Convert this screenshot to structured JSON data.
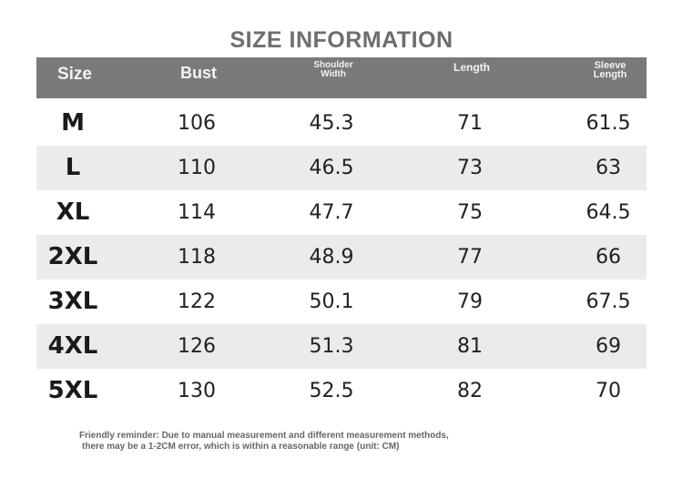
{
  "title": "SIZE INFORMATION",
  "table": {
    "headers": [
      "Size",
      "Bust",
      "Shoulder Width",
      "Length",
      "Sleeve Length"
    ],
    "rows": [
      [
        "M",
        106,
        45.3,
        71,
        61.5
      ],
      [
        "L",
        110,
        46.5,
        73,
        63
      ],
      [
        "XL",
        114,
        47.7,
        75,
        64.5
      ],
      [
        "2XL",
        118,
        48.9,
        77,
        66
      ],
      [
        "3XL",
        122,
        50.1,
        79,
        67.5
      ],
      [
        "4XL",
        126,
        51.3,
        81,
        69
      ],
      [
        "5XL",
        130,
        52.5,
        82,
        70
      ]
    ]
  },
  "footer": [
    "Friendly reminder: Due to manual measurement and different measurement methods,",
    "there may be a 1-2CM error, which is within a reasonable range (unit: CM)"
  ]
}
